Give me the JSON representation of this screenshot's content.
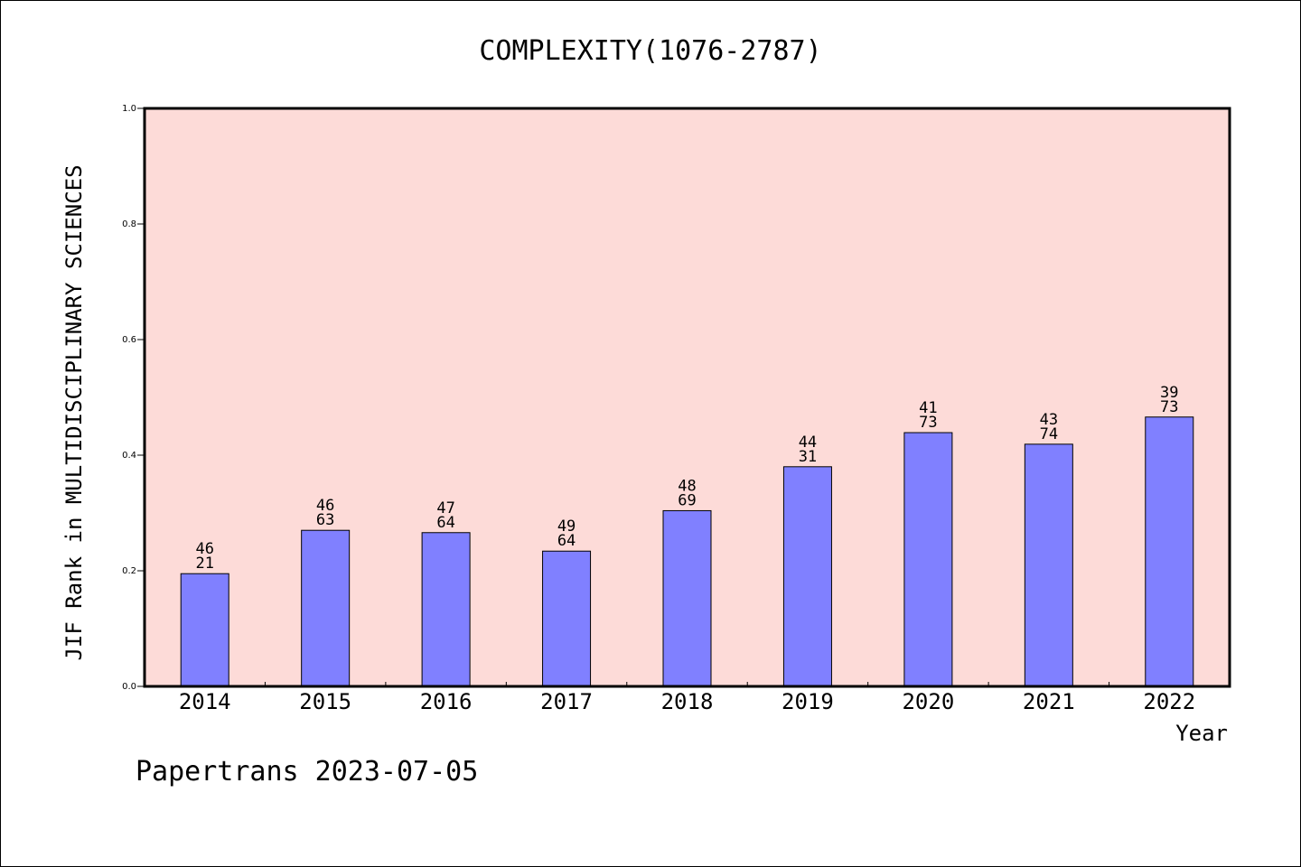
{
  "chart_data": {
    "type": "bar",
    "title": "COMPLEXITY(1076-2787)",
    "xlabel": "Year",
    "ylabel": "JIF Rank in MULTIDISCIPLINARY SCIENCES",
    "categories": [
      "2014",
      "2015",
      "2016",
      "2017",
      "2018",
      "2019",
      "2020",
      "2021",
      "2022"
    ],
    "values": [
      0.195,
      0.27,
      0.266,
      0.234,
      0.304,
      0.38,
      0.439,
      0.419,
      0.466
    ],
    "bar_labels": [
      {
        "top": "46",
        "bottom": "21"
      },
      {
        "top": "46",
        "bottom": "63"
      },
      {
        "top": "47",
        "bottom": "64"
      },
      {
        "top": "49",
        "bottom": "64"
      },
      {
        "top": "48",
        "bottom": "69"
      },
      {
        "top": "44",
        "bottom": "31"
      },
      {
        "top": "41",
        "bottom": "73"
      },
      {
        "top": "43",
        "bottom": "74"
      },
      {
        "top": "39",
        "bottom": "73"
      }
    ],
    "ylim": [
      0,
      1.0
    ],
    "yticks": [
      "0.0",
      "0.2",
      "0.4",
      "0.6",
      "0.8",
      "1.0"
    ],
    "grid": false,
    "colors": {
      "plot_background": "#fddbd8",
      "bar_fill": "#8080ff",
      "bar_stroke": "#000000"
    }
  },
  "footer": {
    "watermark": "Papertrans 2023-07-05"
  }
}
